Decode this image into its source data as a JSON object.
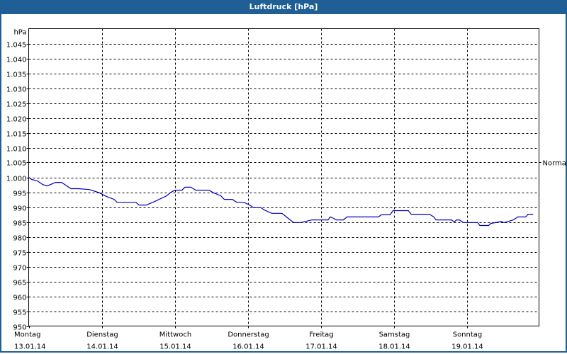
{
  "header": {
    "title": "Luftdruck [hPa]"
  },
  "colors": {
    "titlebar": "#1f5f96",
    "line": "#0000c0",
    "grid": "#000000"
  },
  "chart_data": {
    "type": "line",
    "title": "Luftdruck [hPa]",
    "xlabel": "",
    "ylabel": "hPa",
    "ylim": [
      950,
      1050
    ],
    "yticks": [
      "950",
      "955",
      "960",
      "965",
      "970",
      "975",
      "980",
      "985",
      "990",
      "995",
      "1.000",
      "1.005",
      "1.010",
      "1.015",
      "1.020",
      "1.025",
      "1.030",
      "1.035",
      "1.040",
      "1.045"
    ],
    "reference_label": {
      "text": "Normal",
      "value": 1005
    },
    "categories": [
      {
        "day": "Montag",
        "date": "13.01.14"
      },
      {
        "day": "Dienstag",
        "date": "14.01.14"
      },
      {
        "day": "Mittwoch",
        "date": "15.01.14"
      },
      {
        "day": "Donnerstag",
        "date": "16.01.14"
      },
      {
        "day": "Freitag",
        "date": "17.01.14"
      },
      {
        "day": "Samstag",
        "date": "18.01.14"
      },
      {
        "day": "Sonntag",
        "date": "19.01.14"
      }
    ],
    "grid": true,
    "series": [
      {
        "name": "Luftdruck",
        "x_days": [
          0,
          0.04,
          0.12,
          0.19,
          0.25,
          0.37,
          0.45,
          0.58,
          0.68,
          0.83,
          0.97,
          1.03,
          1.09,
          1.17,
          1.21,
          1.47,
          1.51,
          1.61,
          1.7,
          1.89,
          1.94,
          2.0,
          2.1,
          2.14,
          2.22,
          2.29,
          2.47,
          2.53,
          2.63,
          2.68,
          2.79,
          2.85,
          2.95,
          3.04,
          3.08,
          3.18,
          3.23,
          3.33,
          3.47,
          3.53,
          3.59,
          3.63,
          3.73,
          3.88,
          3.92,
          4.1,
          4.13,
          4.18,
          4.21,
          4.31,
          4.36,
          4.79,
          4.83,
          4.95,
          4.99,
          5.2,
          5.24,
          5.49,
          5.55,
          5.58,
          5.79,
          5.83,
          5.86,
          5.9,
          5.95,
          6.15,
          6.18,
          6.3,
          6.33,
          6.44,
          6.48,
          6.5,
          6.52,
          6.57,
          6.64,
          6.7,
          6.81,
          6.84,
          6.91
        ],
        "values": [
          1000,
          999.3,
          998.8,
          997.6,
          997.1,
          998.3,
          998.3,
          996.2,
          996.2,
          995.9,
          994.8,
          994.0,
          993.3,
          992.6,
          991.6,
          991.6,
          990.7,
          990.7,
          991.6,
          993.8,
          994.8,
          995.7,
          995.7,
          996.7,
          996.7,
          995.7,
          995.7,
          994.8,
          993.8,
          992.6,
          992.6,
          991.6,
          991.6,
          990.5,
          989.8,
          989.8,
          989.0,
          987.9,
          987.9,
          986.7,
          985.5,
          984.8,
          984.8,
          985.7,
          985.7,
          985.7,
          986.7,
          986.2,
          985.7,
          985.7,
          986.7,
          986.7,
          987.4,
          987.4,
          988.8,
          988.8,
          987.6,
          987.6,
          986.7,
          985.7,
          985.7,
          985.0,
          985.7,
          985.7,
          984.8,
          984.8,
          983.8,
          983.8,
          984.5,
          985.0,
          985.2,
          984.8,
          984.8,
          985.2,
          985.7,
          986.7,
          986.7,
          987.6,
          987.6
        ]
      }
    ]
  }
}
